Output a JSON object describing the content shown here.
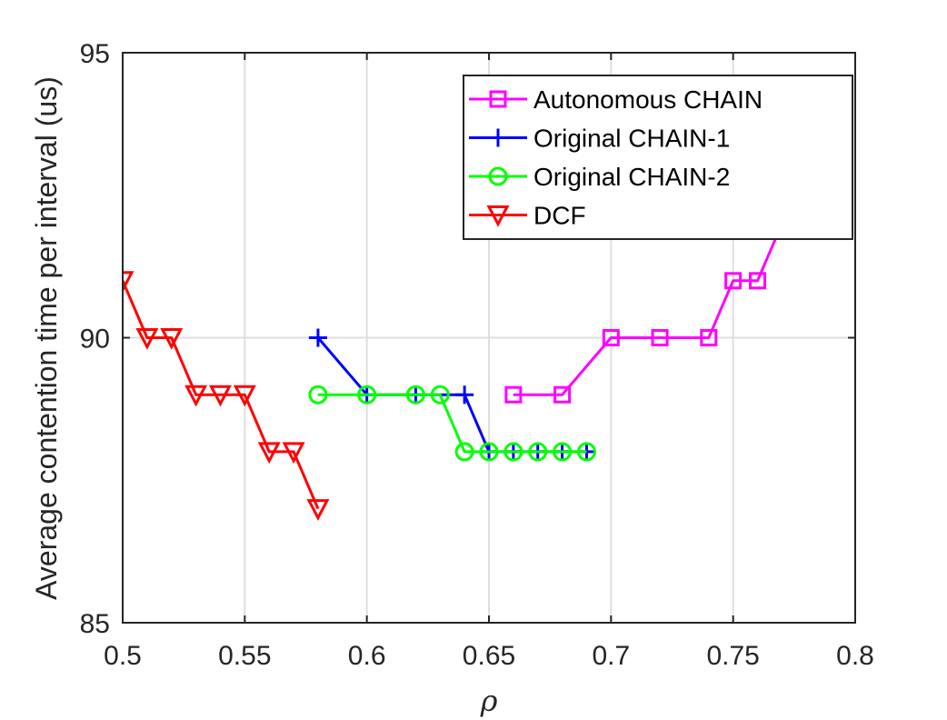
{
  "chart_data": {
    "type": "line",
    "xlabel": "ρ",
    "ylabel": "Average contention time per interval (us)",
    "xlim": [
      0.5,
      0.8
    ],
    "ylim": [
      85,
      95
    ],
    "xticks": [
      0.5,
      0.55,
      0.6,
      0.65,
      0.7,
      0.75,
      0.8
    ],
    "xtick_labels": [
      "0.5",
      "0.55",
      "0.6",
      "0.65",
      "0.7",
      "0.75",
      "0.8"
    ],
    "yticks": [
      85,
      90,
      95
    ],
    "ytick_labels": [
      "85",
      "90",
      "95"
    ],
    "grid": true,
    "legend_position": "top-right",
    "series": [
      {
        "name": "Autonomous CHAIN",
        "color": "#ff00ff",
        "marker": "square",
        "x": [
          0.66,
          0.68,
          0.7,
          0.72,
          0.74,
          0.75,
          0.76,
          0.77
        ],
        "y": [
          89,
          89,
          90,
          90,
          90,
          91,
          91,
          92
        ]
      },
      {
        "name": "Original CHAIN-1",
        "color": "#0000ff",
        "marker": "plus",
        "x": [
          0.58,
          0.6,
          0.62,
          0.64,
          0.65,
          0.66,
          0.67,
          0.68,
          0.69
        ],
        "y": [
          90,
          89,
          89,
          89,
          88,
          88,
          88,
          88,
          88
        ]
      },
      {
        "name": "Original CHAIN-2",
        "color": "#00ff00",
        "marker": "circle",
        "x": [
          0.58,
          0.6,
          0.62,
          0.63,
          0.64,
          0.65,
          0.66,
          0.67,
          0.68,
          0.69
        ],
        "y": [
          89,
          89,
          89,
          89,
          88,
          88,
          88,
          88,
          88,
          88
        ]
      },
      {
        "name": "DCF",
        "color": "#ff0000",
        "marker": "triangle-down",
        "x": [
          0.5,
          0.51,
          0.52,
          0.53,
          0.54,
          0.55,
          0.56,
          0.57,
          0.58
        ],
        "y": [
          91,
          90,
          90,
          89,
          89,
          89,
          88,
          88,
          87
        ]
      }
    ]
  }
}
